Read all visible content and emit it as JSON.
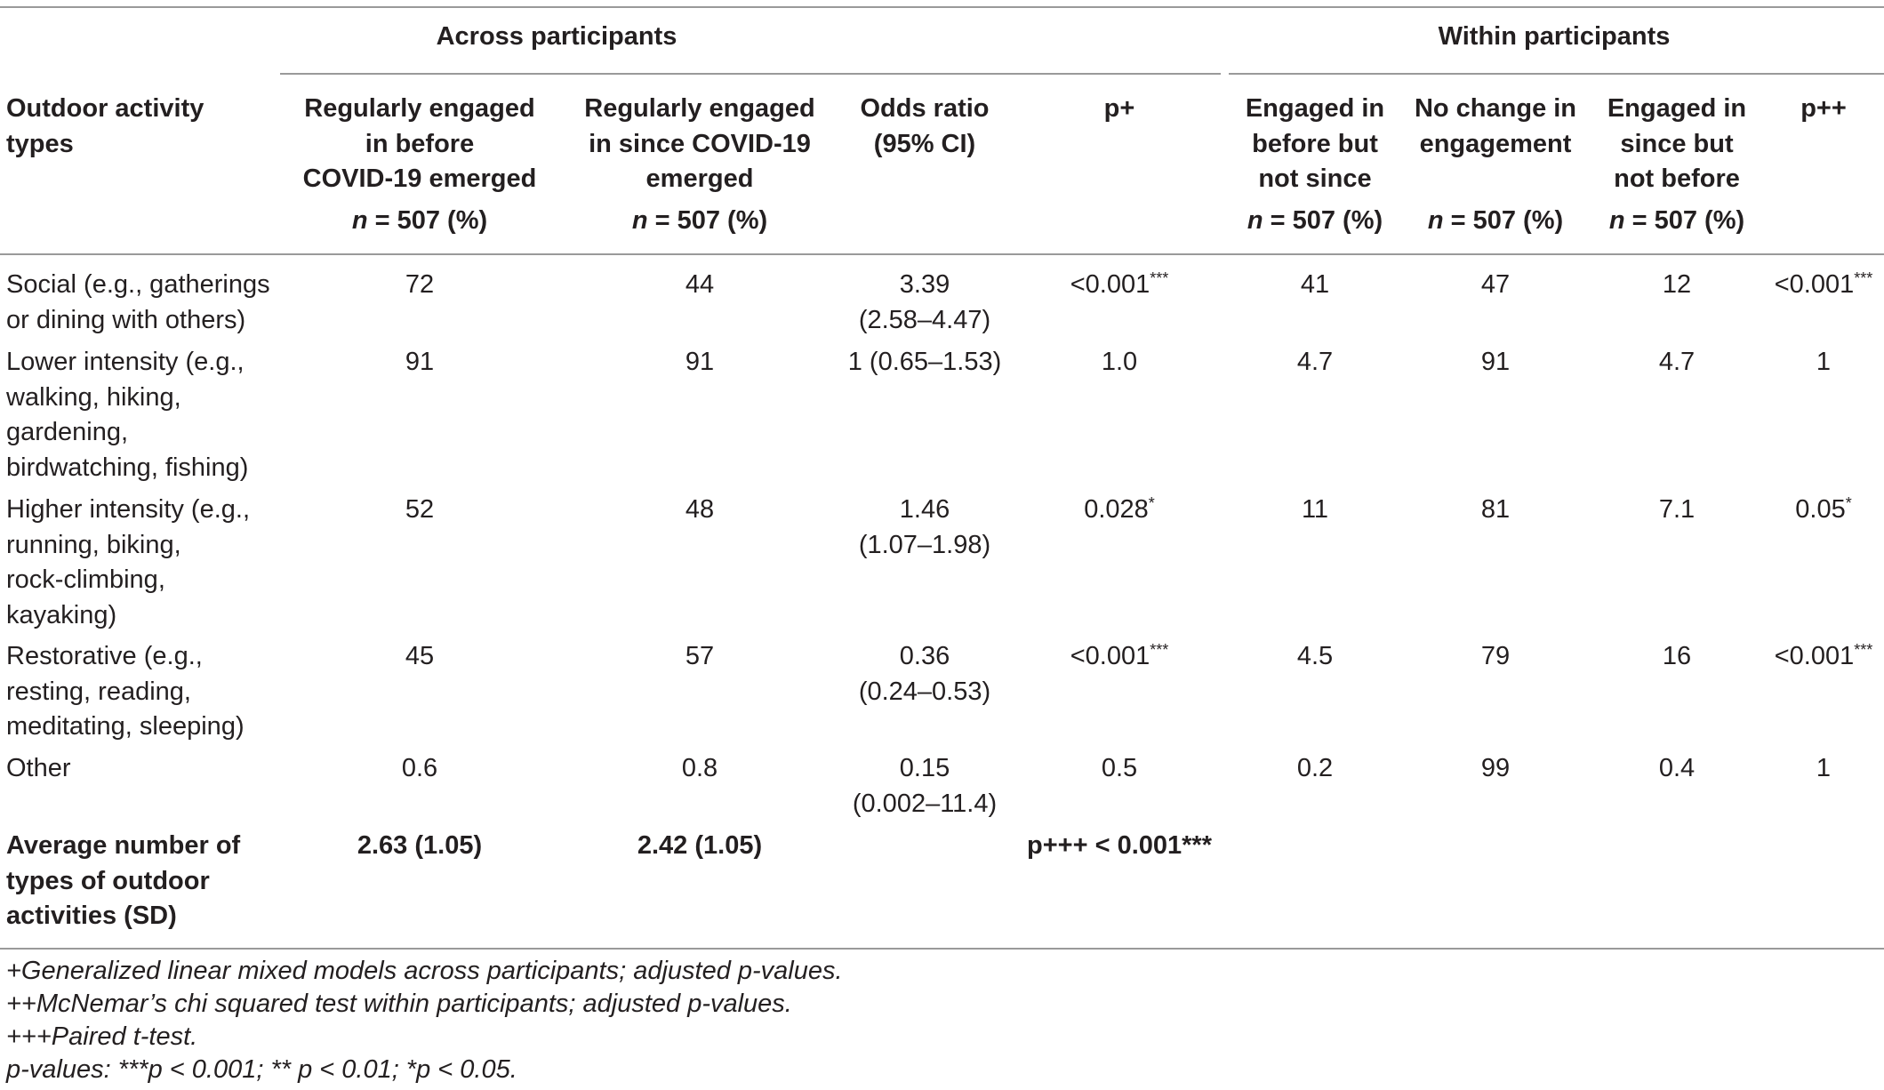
{
  "header": {
    "group_across": "Across participants",
    "group_within": "Within participants",
    "columns": [
      {
        "line1": "Outdoor activity",
        "line2": "types",
        "line3": "",
        "n_label": "",
        "n_value": ""
      },
      {
        "line1": "Regularly engaged",
        "line2": "in before",
        "line3": "COVID-19 emerged",
        "n_label": "n",
        "n_value": " = 507 (%)"
      },
      {
        "line1": "Regularly engaged",
        "line2": "in since COVID-19",
        "line3": "emerged",
        "n_label": "n",
        "n_value": " = 507 (%)"
      },
      {
        "line1": "Odds ratio",
        "line2": "(95% CI)",
        "line3": "",
        "n_label": "",
        "n_value": ""
      },
      {
        "line1": "p+",
        "line2": "",
        "line3": "",
        "n_label": "",
        "n_value": ""
      },
      {
        "line1": "Engaged in",
        "line2": "before but",
        "line3": "not since",
        "n_label": "n",
        "n_value": " = 507 (%)"
      },
      {
        "line1": "No change in",
        "line2": "engagement",
        "line3": "",
        "n_label": "n",
        "n_value": " = 507 (%)"
      },
      {
        "line1": "Engaged in",
        "line2": "since but",
        "line3": "not before",
        "n_label": "n",
        "n_value": " = 507 (%)"
      },
      {
        "line1": "p++",
        "line2": "",
        "line3": "",
        "n_label": "",
        "n_value": ""
      }
    ]
  },
  "rows": [
    {
      "label": [
        "Social (e.g., gatherings",
        "or dining with others)"
      ],
      "before": "72",
      "since": "44",
      "odds": [
        "3.39",
        "(2.58–4.47)"
      ],
      "p": "<0.001",
      "p_sup": "***",
      "not_since": "41",
      "no_change": "47",
      "not_before": "12",
      "p2": "<0.001",
      "p2_sup": "***"
    },
    {
      "label": [
        "Lower intensity (e.g.,",
        "walking, hiking,",
        "gardening,",
        "birdwatching, fishing)"
      ],
      "before": "91",
      "since": "91",
      "odds": [
        "1 (0.65–1.53)"
      ],
      "p": "1.0",
      "p_sup": "",
      "not_since": "4.7",
      "no_change": "91",
      "not_before": "4.7",
      "p2": "1",
      "p2_sup": ""
    },
    {
      "label": [
        "Higher intensity (e.g.,",
        "running, biking,",
        "rock-climbing,",
        "kayaking)"
      ],
      "before": "52",
      "since": "48",
      "odds": [
        "1.46",
        "(1.07–1.98)"
      ],
      "p": "0.028",
      "p_sup": "*",
      "not_since": "11",
      "no_change": "81",
      "not_before": "7.1",
      "p2": "0.05",
      "p2_sup": "*"
    },
    {
      "label": [
        "Restorative (e.g.,",
        "resting, reading,",
        "meditating, sleeping)"
      ],
      "before": "45",
      "since": "57",
      "odds": [
        "0.36",
        "(0.24–0.53)"
      ],
      "p": "<0.001",
      "p_sup": "***",
      "not_since": "4.5",
      "no_change": "79",
      "not_before": "16",
      "p2": "<0.001",
      "p2_sup": "***"
    },
    {
      "label": [
        "Other"
      ],
      "before": "0.6",
      "since": "0.8",
      "odds": [
        "0.15",
        "(0.002–11.4)"
      ],
      "p": "0.5",
      "p_sup": "",
      "not_since": "0.2",
      "no_change": "99",
      "not_before": "0.4",
      "p2": "1",
      "p2_sup": ""
    }
  ],
  "average_row": {
    "label": [
      "Average number of",
      "types of outdoor",
      "activities (SD)"
    ],
    "before": "2.63 (1.05)",
    "since": "2.42 (1.05)",
    "p": "p+++ < 0.001***"
  },
  "footnotes": [
    "+Generalized linear mixed models across participants; adjusted p-values.",
    "++McNemar’s chi squared test within participants; adjusted p-values.",
    "+++Paired t-test.",
    "p-values: ***p < 0.001; ** p < 0.01; *p < 0.05."
  ]
}
